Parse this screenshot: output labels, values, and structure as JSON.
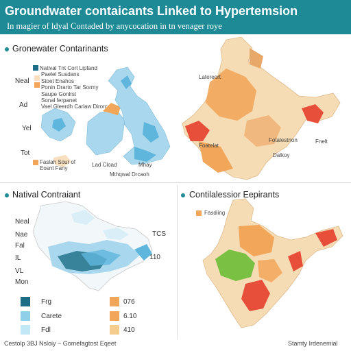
{
  "header": {
    "title": "Groundwater contaicants Linked to Hypertemsion",
    "subtitle": "In magier of ldyal Contaded by anycocation in tn venager roye"
  },
  "panel_top_left": {
    "title": "Gronewater Contarinants",
    "row_labels": [
      "Neal",
      "Ad",
      "Yel",
      "Tot"
    ],
    "legend_title": "Natival Tnt Cort Lipfand",
    "legend_items": [
      "Paelel Susdans",
      "Stoet Enahos",
      "Ponin Drarto Tar Sormy",
      "Saupe Gonlrst",
      "Sonal ferpanet",
      "Vael Gleerdh Carlaw Dirorce"
    ],
    "bottom_note_1": "Faslah Sour of Eosnt Fany",
    "bottom_note_2": "Lad Cload",
    "bottom_note_3": "Mthqwal Drcaoh",
    "bottom_note_4": "Mhay",
    "colors": {
      "light_blue": "#a9d7ee",
      "blue": "#5fb6dc",
      "dark_teal": "#1b6e85",
      "orange": "#f2a65a",
      "peach": "#f8dfbf"
    }
  },
  "panel_top_right": {
    "labels": [
      "Latereort",
      "Foatelat",
      "Fotalestrion",
      "Dalkoy",
      "Fnelt"
    ],
    "colors": {
      "base": "#f6dcb5",
      "orange": "#f2a65a",
      "red": "#e84f3a"
    }
  },
  "panel_bottom_left": {
    "title": "Natival Contraiant",
    "row_labels": [
      "Neal",
      "Nae",
      "Fal",
      "IL",
      "VL",
      "Mon"
    ],
    "right_labels": [
      "TCS",
      "110"
    ],
    "legend": [
      {
        "color": "#1b6e85",
        "label": "Frg"
      },
      {
        "color": "#8fd0e8",
        "label": "Carete"
      },
      {
        "color": "#c2e7f5",
        "label": "Fdl"
      }
    ],
    "values_legend": [
      {
        "color": "#f2a65a",
        "value": "076"
      },
      {
        "color": "#f2a65a",
        "value": "6.10"
      },
      {
        "color": "#f6cb8e",
        "value": "410"
      }
    ]
  },
  "panel_bottom_right": {
    "title": "Contilalessior Eepirants",
    "legend_label": "Fasdiing",
    "colors": {
      "base": "#f6dcb5",
      "green": "#7ac143",
      "orange": "#f2a65a",
      "red": "#e84f3a"
    }
  },
  "footer": {
    "left": "Cestolp 3BJ Nsloiy ~ Gomefagtost Eqeet",
    "right": "Stamty Irdenemial"
  }
}
